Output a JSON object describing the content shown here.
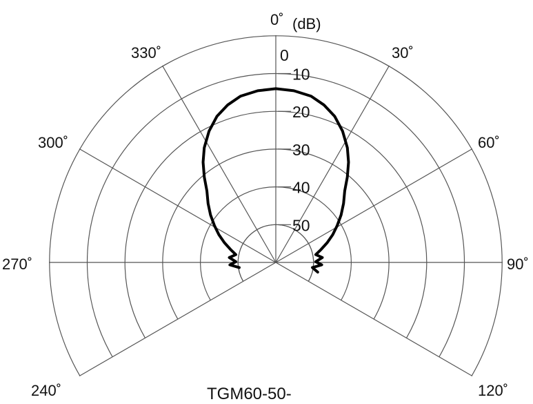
{
  "chart_data": {
    "type": "polar-line",
    "unit_label": "(dB)",
    "caption": "TGM60-50-",
    "angle_labels": [
      {
        "angle": 0,
        "text": "0˚"
      },
      {
        "angle": 30,
        "text": "30˚"
      },
      {
        "angle": 60,
        "text": "60˚"
      },
      {
        "angle": 90,
        "text": "90˚"
      },
      {
        "angle": 120,
        "text": "120˚"
      },
      {
        "angle": 240,
        "text": "240˚"
      },
      {
        "angle": 270,
        "text": "270˚"
      },
      {
        "angle": 300,
        "text": "300˚"
      },
      {
        "angle": 330,
        "text": "330˚"
      }
    ],
    "spokes": [
      0,
      30,
      60,
      90,
      120,
      240,
      270,
      300,
      330
    ],
    "angular_range": [
      -120,
      120
    ],
    "radial_axis": {
      "unit": "dB",
      "ticks": [
        0,
        10,
        20,
        30,
        40,
        50
      ],
      "tick_labels": [
        "0",
        "10",
        "20",
        "30",
        "40",
        "50"
      ],
      "rings": [
        0,
        10,
        20,
        30,
        40,
        50
      ],
      "outer": 0,
      "inner": 60
    },
    "series": [
      {
        "color": "#000000",
        "points": [
          {
            "angle": -98,
            "level": 50.2
          },
          {
            "angle": -93,
            "level": 47.8
          },
          {
            "angle": -89,
            "level": 49.4
          },
          {
            "angle": -84,
            "level": 47.6
          },
          {
            "angle": -79,
            "level": 49.2
          },
          {
            "angle": -74,
            "level": 47.5
          },
          {
            "angle": -69,
            "level": 45.4
          },
          {
            "angle": -64,
            "level": 43.2
          },
          {
            "angle": -59,
            "level": 41.0
          },
          {
            "angle": -54,
            "level": 38.6
          },
          {
            "angle": -49,
            "level": 36.2
          },
          {
            "angle": -44,
            "level": 33.7
          },
          {
            "angle": -40,
            "level": 30.5
          },
          {
            "angle": -36,
            "level": 27.2
          },
          {
            "angle": -32,
            "level": 24.2
          },
          {
            "angle": -27,
            "level": 21.0
          },
          {
            "angle": -22,
            "level": 18.3
          },
          {
            "angle": -17,
            "level": 16.4
          },
          {
            "angle": -12,
            "level": 15.0
          },
          {
            "angle": -6,
            "level": 14.3
          },
          {
            "angle": 0,
            "level": 14.0
          },
          {
            "angle": 6,
            "level": 14.3
          },
          {
            "angle": 12,
            "level": 15.0
          },
          {
            "angle": 17,
            "level": 16.4
          },
          {
            "angle": 22,
            "level": 18.3
          },
          {
            "angle": 27,
            "level": 21.0
          },
          {
            "angle": 32,
            "level": 24.2
          },
          {
            "angle": 36,
            "level": 27.2
          },
          {
            "angle": 40,
            "level": 30.5
          },
          {
            "angle": 44,
            "level": 33.7
          },
          {
            "angle": 49,
            "level": 36.2
          },
          {
            "angle": 54,
            "level": 38.6
          },
          {
            "angle": 59,
            "level": 41.0
          },
          {
            "angle": 64,
            "level": 43.2
          },
          {
            "angle": 69,
            "level": 45.4
          },
          {
            "angle": 74,
            "level": 47.5
          },
          {
            "angle": 79,
            "level": 49.2
          },
          {
            "angle": 84,
            "level": 47.6
          },
          {
            "angle": 89,
            "level": 49.4
          },
          {
            "angle": 93,
            "level": 47.8
          },
          {
            "angle": 98,
            "level": 50.2
          },
          {
            "angle": 103,
            "level": 48.6
          }
        ]
      }
    ],
    "grid": true,
    "legend": "none"
  }
}
